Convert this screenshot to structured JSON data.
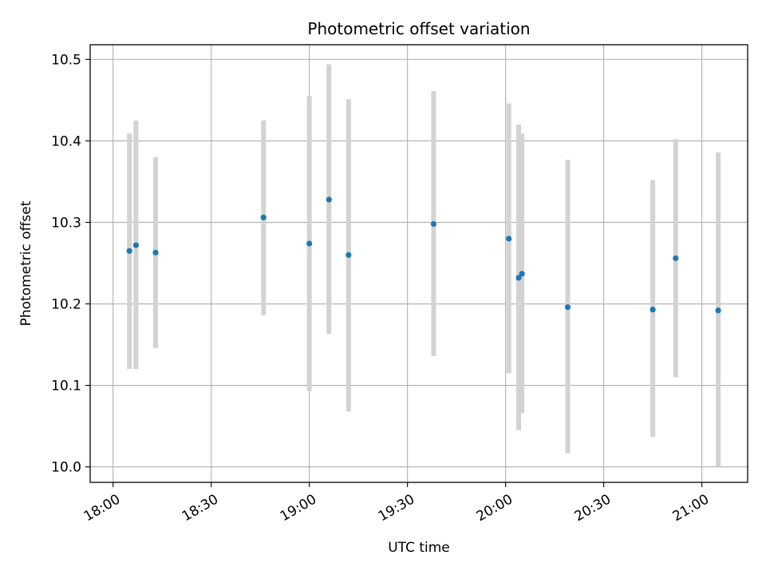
{
  "chart_data": {
    "type": "scatter",
    "title": "Photometric offset variation",
    "xlabel": "UTC time",
    "ylabel": "Photometric offset",
    "x_axis_type": "time",
    "xlim": [
      "17:53",
      "21:14"
    ],
    "ylim": [
      9.981,
      10.518
    ],
    "x_ticks": [
      "18:00",
      "18:30",
      "19:00",
      "19:30",
      "20:00",
      "20:30",
      "21:00"
    ],
    "y_ticks": [
      10.0,
      10.1,
      10.2,
      10.3,
      10.4,
      10.5
    ],
    "grid": true,
    "legend": "none",
    "point_color": "#1f77b4",
    "errorbar_color": "#d3d3d3",
    "points": [
      {
        "t": "18:05",
        "y": 10.265,
        "low": 10.12,
        "high": 10.409
      },
      {
        "t": "18:07",
        "y": 10.272,
        "low": 10.12,
        "high": 10.425
      },
      {
        "t": "18:13",
        "y": 10.263,
        "low": 10.146,
        "high": 10.38
      },
      {
        "t": "18:46",
        "y": 10.306,
        "low": 10.186,
        "high": 10.425
      },
      {
        "t": "19:00",
        "y": 10.274,
        "low": 10.093,
        "high": 10.455
      },
      {
        "t": "19:06",
        "y": 10.328,
        "low": 10.163,
        "high": 10.494
      },
      {
        "t": "19:12",
        "y": 10.26,
        "low": 10.068,
        "high": 10.451
      },
      {
        "t": "19:38",
        "y": 10.298,
        "low": 10.136,
        "high": 10.461
      },
      {
        "t": "20:01",
        "y": 10.28,
        "low": 10.115,
        "high": 10.446
      },
      {
        "t": "20:04",
        "y": 10.232,
        "low": 10.045,
        "high": 10.42
      },
      {
        "t": "20:05",
        "y": 10.237,
        "low": 10.066,
        "high": 10.409
      },
      {
        "t": "20:19",
        "y": 10.196,
        "low": 10.017,
        "high": 10.377
      },
      {
        "t": "20:45",
        "y": 10.193,
        "low": 10.037,
        "high": 10.352
      },
      {
        "t": "20:52",
        "y": 10.256,
        "low": 10.11,
        "high": 10.402
      },
      {
        "t": "21:05",
        "y": 10.192,
        "low": 10.0,
        "high": 10.386
      }
    ]
  }
}
